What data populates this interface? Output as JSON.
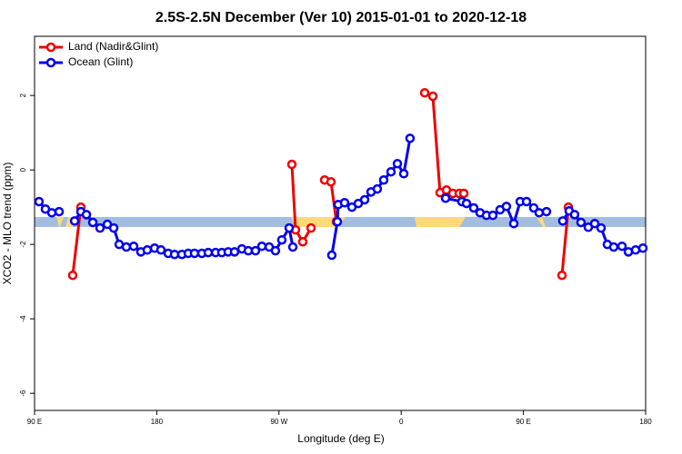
{
  "chart_data": {
    "type": "line",
    "title": "2.5S-2.5N December (Ver 10)   2015-01-01 to 2020-12-18",
    "x_label": "Longitude (deg E)",
    "y_label": "XCO2 - MLO trend (ppm)",
    "xlim": [
      90,
      540
    ],
    "xticks": [
      {
        "value": 90,
        "label": "90 E"
      },
      180,
      {
        "value": 270,
        "label": "90 W"
      },
      {
        "value": 360,
        "label": "0"
      },
      {
        "value": 450,
        "label": "90 E"
      },
      {
        "value": 540,
        "label": "180"
      }
    ],
    "ylim": [
      -6.46,
      3.59
    ],
    "yticks": [
      -6,
      -4,
      -2,
      0,
      2
    ],
    "legend": "top-left",
    "series": [
      {
        "name": "Land (Nadir&Glint)",
        "color": "#ee0000",
        "x": [
          118.1,
          124.1,
          null,
          279.5,
          282.2,
          287.5,
          293.6,
          null,
          303.6,
          308.3,
          312.3,
          null,
          377.3,
          383.3,
          388.6,
          393.3,
          398.0,
          402.7,
          406.1,
          null,
          478.4,
          483.1
        ],
        "values": [
          -2.83,
          -1.0,
          null,
          0.15,
          -1.61,
          -1.93,
          -1.56,
          null,
          -0.27,
          -0.32,
          -1.39,
          null,
          2.07,
          1.98,
          -0.61,
          -0.54,
          -0.63,
          -0.63,
          -0.63,
          null,
          -2.83,
          -1.0
        ]
      },
      {
        "name": "Ocean (Glint)",
        "color": "#0000ee",
        "x": [
          93.3,
          98.0,
          102.7,
          108.1,
          null,
          119.5,
          124.1,
          128.2,
          132.9,
          138.2,
          143.6,
          148.3,
          152.3,
          157.6,
          163.0,
          168.3,
          173.0,
          178.4,
          183.1,
          188.4,
          193.1,
          198.5,
          203.2,
          207.8,
          213.2,
          217.9,
          223.3,
          227.9,
          232.6,
          237.3,
          242.7,
          247.4,
          252.7,
          257.4,
          262.8,
          267.4,
          272.1,
          277.5,
          280.2,
          null,
          308.9,
          313.0,
          313.6,
          318.3,
          323.7,
          328.4,
          333.1,
          337.8,
          342.4,
          347.1,
          352.5,
          357.2,
          361.9,
          366.5,
          null,
          392.7,
          404.7,
          408.1,
          413.4,
          418.1,
          422.8,
          427.5,
          432.8,
          437.5,
          442.9,
          447.6,
          452.3,
          457.6,
          461.6,
          467.0,
          null,
          479.0,
          483.7,
          487.7,
          492.4,
          497.8,
          502.5,
          507.2,
          511.8,
          516.5,
          522.6,
          527.3,
          532.6,
          538.0
        ],
        "values": [
          -0.85,
          -1.05,
          -1.15,
          -1.12,
          null,
          -1.37,
          -1.12,
          -1.2,
          -1.41,
          -1.56,
          -1.46,
          -1.56,
          -2.0,
          -2.07,
          -2.05,
          -2.2,
          -2.15,
          -2.1,
          -2.15,
          -2.24,
          -2.27,
          -2.27,
          -2.24,
          -2.24,
          -2.24,
          -2.22,
          -2.22,
          -2.22,
          -2.2,
          -2.2,
          -2.12,
          -2.17,
          -2.17,
          -2.05,
          -2.07,
          -2.17,
          -1.88,
          -1.56,
          -2.07,
          null,
          -2.29,
          -1.39,
          -0.93,
          -0.88,
          -1.0,
          -0.9,
          -0.8,
          -0.59,
          -0.51,
          -0.27,
          -0.05,
          0.17,
          -0.1,
          0.85,
          null,
          -0.76,
          -0.85,
          -0.9,
          -1.02,
          -1.15,
          -1.22,
          -1.22,
          -1.07,
          -0.98,
          -1.44,
          -0.85,
          -0.85,
          -1.02,
          -1.15,
          -1.12,
          null,
          -1.37,
          -1.1,
          -1.2,
          -1.41,
          -1.54,
          -1.44,
          -1.56,
          -2.0,
          -2.07,
          -2.05,
          -2.2,
          -2.15,
          -2.1
        ]
      }
    ]
  }
}
